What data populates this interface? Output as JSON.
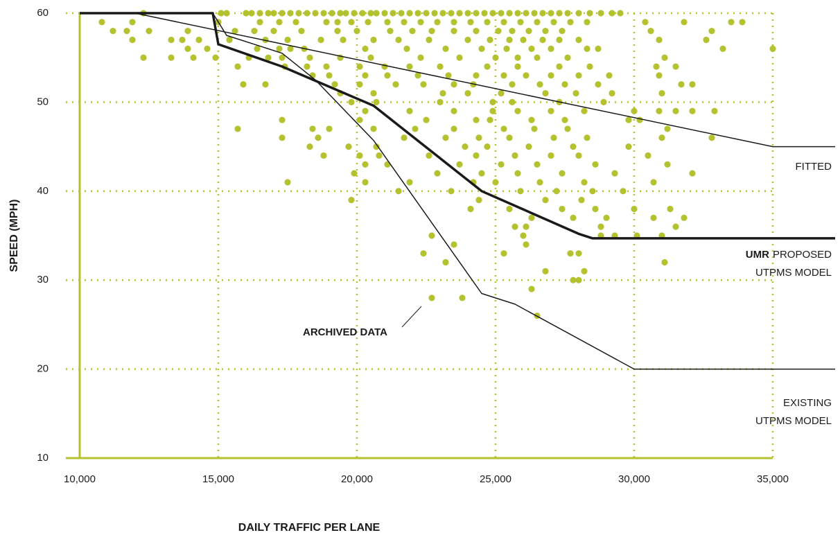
{
  "chart_data": {
    "type": "scatter",
    "x_label": "DAILY TRAFFIC PER LANE",
    "y_label": "SPEED (MPH)",
    "xlim": [
      9500,
      37250
    ],
    "ylim": [
      10,
      60
    ],
    "xticks": [
      {
        "value": 10000,
        "label": "10,000"
      },
      {
        "value": 15000,
        "label": "15,000"
      },
      {
        "value": 20000,
        "label": "20,000"
      },
      {
        "value": 25000,
        "label": "25,000"
      },
      {
        "value": 30000,
        "label": "30,000"
      },
      {
        "value": 35000,
        "label": "35,000"
      }
    ],
    "yticks": [
      10,
      20,
      30,
      40,
      50,
      60
    ],
    "grid": true,
    "series": [
      {
        "name": "ARCHIVED DATA",
        "type": "scatter",
        "color": "#b5c22f",
        "x": [
          15100,
          15300,
          16000,
          16200,
          16500,
          16800,
          17000,
          17300,
          17600,
          17900,
          18200,
          18500,
          18800,
          19100,
          19400,
          19600,
          19900,
          20200,
          20500,
          20700,
          21000,
          21300,
          21600,
          21900,
          22200,
          22500,
          22800,
          23100,
          23400,
          23700,
          24000,
          24300,
          24600,
          24900,
          25200,
          25500,
          25800,
          26100,
          26400,
          26700,
          27000,
          27300,
          27600,
          28000,
          28400,
          28800,
          29200,
          29500,
          12300,
          10800,
          11900,
          15000,
          16500,
          17200,
          17800,
          18900,
          19300,
          19800,
          20400,
          21100,
          21700,
          22300,
          22900,
          23500,
          24100,
          24700,
          25300,
          25900,
          26500,
          27100,
          27700,
          28300,
          30400,
          31800,
          33500,
          33900,
          11200,
          11700,
          12500,
          13900,
          15600,
          16300,
          17000,
          18000,
          19300,
          20000,
          21200,
          22000,
          22700,
          23500,
          24300,
          25100,
          25600,
          26200,
          26800,
          27400,
          30600,
          32800,
          11900,
          13300,
          13700,
          14300,
          15400,
          16700,
          17500,
          18700,
          19500,
          20600,
          21500,
          22600,
          24000,
          24800,
          25500,
          26000,
          26700,
          27300,
          28000,
          30900,
          32600,
          13900,
          14600,
          16400,
          17200,
          17600,
          18100,
          20300,
          21800,
          23200,
          24500,
          25400,
          26300,
          27000,
          28300,
          28700,
          33200,
          35000,
          12300,
          13300,
          14100,
          14900,
          16100,
          16800,
          17300,
          18300,
          19400,
          20500,
          22300,
          23700,
          25000,
          25800,
          26500,
          27600,
          31100,
          15700,
          17400,
          18200,
          18900,
          20100,
          21000,
          21900,
          23000,
          24700,
          25800,
          27300,
          28400,
          30800,
          31500,
          18400,
          19000,
          20300,
          21100,
          22200,
          23300,
          24300,
          25300,
          26100,
          27000,
          28000,
          29100,
          30900,
          15900,
          16700,
          19200,
          20100,
          21400,
          22400,
          23500,
          24200,
          25600,
          26600,
          27500,
          28700,
          31700,
          32100,
          19400,
          20600,
          23100,
          24000,
          25200,
          26800,
          27900,
          29200,
          31000,
          19800,
          20700,
          23000,
          24900,
          25600,
          27300,
          28900,
          20300,
          21900,
          23500,
          24900,
          25800,
          27000,
          28200,
          30000,
          30900,
          31500,
          32100,
          32900,
          17300,
          20100,
          22500,
          24300,
          24800,
          26300,
          27500,
          29800,
          30200,
          15700,
          18400,
          19000,
          20600,
          22100,
          23500,
          25300,
          26400,
          27600,
          31200,
          17300,
          18600,
          21700,
          23200,
          24400,
          25500,
          27100,
          28300,
          31000,
          32800,
          18300,
          19700,
          20700,
          23900,
          24700,
          26200,
          27800,
          29800,
          18800,
          20100,
          20800,
          22600,
          24300,
          25700,
          27000,
          28000,
          30500,
          20300,
          21100,
          23700,
          25200,
          26500,
          28600,
          31200,
          19900,
          22900,
          24500,
          25800,
          27400,
          29300,
          32100,
          17500,
          20300,
          21900,
          24200,
          25000,
          26600,
          28200,
          30700,
          21500,
          23400,
          25900,
          27200,
          28500,
          29600,
          19800,
          24400,
          26800,
          28100,
          24100,
          25500,
          27400,
          28600,
          30000,
          31300,
          26300,
          27800,
          29000,
          30700,
          31800,
          25700,
          26100,
          28800,
          31500,
          22700,
          26000,
          28800,
          29300,
          30100,
          31000,
          23500,
          26100,
          22400,
          25300,
          27700,
          28000,
          23200,
          31100,
          26800,
          28200,
          27800,
          28000,
          26300,
          22700,
          23800,
          26500
        ],
        "values": [
          60,
          60,
          60,
          60,
          60,
          60,
          60,
          60,
          60,
          60,
          60,
          60,
          60,
          60,
          60,
          60,
          60,
          60,
          60,
          60,
          60,
          60,
          60,
          60,
          60,
          60,
          60,
          60,
          60,
          60,
          60,
          60,
          60,
          60,
          60,
          60,
          60,
          60,
          60,
          60,
          60,
          60,
          60,
          60,
          60,
          60,
          60,
          60,
          60,
          59,
          59,
          59,
          59,
          59,
          59,
          59,
          59,
          59,
          59,
          59,
          59,
          59,
          59,
          59,
          59,
          59,
          59,
          59,
          59,
          59,
          59,
          59,
          59,
          59,
          59,
          59,
          58,
          58,
          58,
          58,
          58,
          58,
          58,
          58,
          58,
          58,
          58,
          58,
          58,
          58,
          58,
          58,
          58,
          58,
          58,
          58,
          58,
          58,
          57,
          57,
          57,
          57,
          57,
          57,
          57,
          57,
          57,
          57,
          57,
          57,
          57,
          57,
          57,
          57,
          57,
          57,
          57,
          57,
          57,
          56,
          56,
          56,
          56,
          56,
          56,
          56,
          56,
          56,
          56,
          56,
          56,
          56,
          56,
          56,
          56,
          56,
          55,
          55,
          55,
          55,
          55,
          55,
          55,
          55,
          55,
          55,
          55,
          55,
          55,
          55,
          55,
          55,
          55,
          54,
          54,
          54,
          54,
          54,
          54,
          54,
          54,
          54,
          54,
          54,
          54,
          54,
          54,
          53,
          53,
          53,
          53,
          53,
          53,
          53,
          53,
          53,
          53,
          53,
          53,
          53,
          52,
          52,
          52,
          52,
          52,
          52,
          52,
          52,
          52,
          52,
          52,
          52,
          52,
          52,
          51,
          51,
          51,
          51,
          51,
          51,
          51,
          51,
          51,
          50,
          50,
          50,
          50,
          50,
          50,
          50,
          49,
          49,
          49,
          49,
          49,
          49,
          49,
          49,
          49,
          49,
          49,
          49,
          48,
          48,
          48,
          48,
          48,
          48,
          48,
          48,
          48,
          47,
          47,
          47,
          47,
          47,
          47,
          47,
          47,
          47,
          47,
          46,
          46,
          46,
          46,
          46,
          46,
          46,
          46,
          46,
          46,
          45,
          45,
          45,
          45,
          45,
          45,
          45,
          45,
          44,
          44,
          44,
          44,
          44,
          44,
          44,
          44,
          44,
          43,
          43,
          43,
          43,
          43,
          43,
          43,
          42,
          42,
          42,
          42,
          42,
          42,
          42,
          41,
          41,
          41,
          41,
          41,
          41,
          41,
          41,
          40,
          40,
          40,
          40,
          40,
          40,
          39,
          39,
          39,
          39,
          38,
          38,
          38,
          38,
          38,
          38,
          37,
          37,
          37,
          37,
          37,
          36,
          36,
          36,
          36,
          35,
          35,
          35,
          35,
          35,
          35,
          34,
          34,
          33,
          33,
          33,
          33,
          32,
          32,
          31,
          31,
          30,
          30,
          29,
          28,
          28,
          26
        ]
      },
      {
        "type": "line",
        "color": "#1a1a1a",
        "label_lines": [
          "FITTED"
        ],
        "x": [
          10000,
          12000,
          35000,
          37250
        ],
        "values": [
          60,
          60,
          45,
          45
        ]
      },
      {
        "type": "line",
        "color": "#1a1a1a",
        "label_bold": "UMR",
        "label_lines": [
          "PROPOSED",
          "UTPMS MODEL"
        ],
        "x": [
          10000,
          14800,
          15000,
          17300,
          20600,
          24500,
          28000,
          28500,
          37250
        ],
        "values": [
          60,
          60,
          56.5,
          54,
          49.6,
          40,
          35.2,
          34.7,
          34.7
        ]
      },
      {
        "type": "line",
        "color": "#1a1a1a",
        "label_lines": [
          "EXISTING",
          "UTPMS MODEL"
        ],
        "x": [
          10000,
          14800,
          15000,
          15300,
          17300,
          18500,
          20600,
          24500,
          25700,
          30000,
          37250
        ],
        "values": [
          60,
          60,
          59,
          57.5,
          55.5,
          52.5,
          45.7,
          28.5,
          27.3,
          20,
          20
        ]
      }
    ]
  }
}
